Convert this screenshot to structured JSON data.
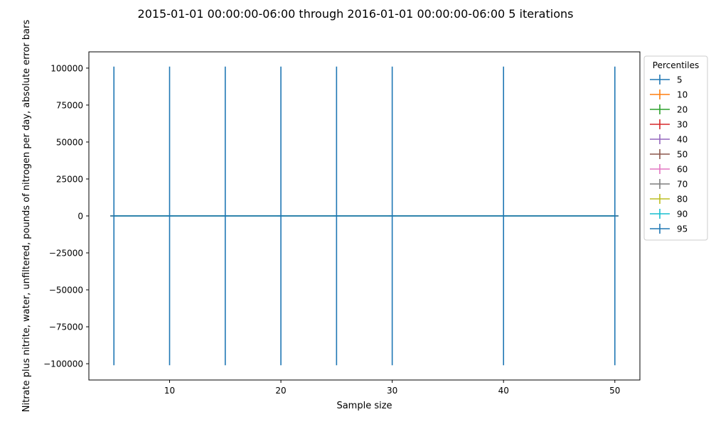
{
  "chart_data": {
    "type": "line",
    "title": "2015-01-01 00:00:00-06:00 through 2016-01-01 00:00:00-06:00 5 iterations",
    "xlabel": "Sample size",
    "ylabel": "Nitrate plus nitrite, water, unfiltered, pounds of nitrogen per day, absolute error bars",
    "xlim": [
      2.75,
      52.25
    ],
    "ylim": [
      -111000,
      111000
    ],
    "x_ticks": [
      10,
      20,
      30,
      40,
      50
    ],
    "x_tick_labels": [
      "10",
      "20",
      "30",
      "40",
      "50"
    ],
    "y_ticks": [
      100000,
      75000,
      50000,
      25000,
      0,
      -25000,
      -50000,
      -75000,
      -100000
    ],
    "y_tick_labels": [
      "100000",
      "75000",
      "50000",
      "25000",
      "0",
      "−25000",
      "−50000",
      "−75000",
      "−100000"
    ],
    "grid": false,
    "legend": {
      "title": "Percentiles",
      "placement": "outside-right"
    },
    "x": [
      5,
      10,
      15,
      20,
      25,
      30,
      40,
      50
    ],
    "series": [
      {
        "name": "5",
        "color": "#1f77b4",
        "values": [
          0,
          0,
          0,
          0,
          0,
          0,
          0,
          0
        ],
        "err": [
          0,
          0,
          0,
          0,
          0,
          0,
          0,
          0
        ]
      },
      {
        "name": "10",
        "color": "#ff7f0e",
        "values": [
          0,
          0,
          0,
          0,
          0,
          0,
          0,
          0
        ],
        "err": [
          0,
          0,
          0,
          0,
          0,
          0,
          0,
          0
        ]
      },
      {
        "name": "20",
        "color": "#2ca02c",
        "values": [
          0,
          0,
          0,
          0,
          0,
          0,
          0,
          0
        ],
        "err": [
          0,
          0,
          0,
          0,
          0,
          0,
          0,
          0
        ]
      },
      {
        "name": "30",
        "color": "#d62728",
        "values": [
          0,
          0,
          0,
          0,
          0,
          0,
          0,
          0
        ],
        "err": [
          0,
          0,
          0,
          0,
          0,
          0,
          0,
          0
        ]
      },
      {
        "name": "40",
        "color": "#9467bd",
        "values": [
          0,
          0,
          0,
          0,
          0,
          0,
          0,
          0
        ],
        "err": [
          0,
          0,
          0,
          0,
          0,
          0,
          0,
          0
        ]
      },
      {
        "name": "50",
        "color": "#8c564b",
        "values": [
          0,
          0,
          0,
          0,
          0,
          0,
          0,
          0
        ],
        "err": [
          0,
          0,
          0,
          0,
          0,
          0,
          0,
          0
        ]
      },
      {
        "name": "60",
        "color": "#e377c2",
        "values": [
          0,
          0,
          0,
          0,
          0,
          0,
          0,
          0
        ],
        "err": [
          0,
          0,
          0,
          0,
          0,
          0,
          0,
          0
        ]
      },
      {
        "name": "70",
        "color": "#7f7f7f",
        "values": [
          0,
          0,
          0,
          0,
          0,
          0,
          0,
          0
        ],
        "err": [
          0,
          0,
          0,
          0,
          0,
          0,
          0,
          0
        ]
      },
      {
        "name": "80",
        "color": "#bcbd22",
        "values": [
          0,
          0,
          0,
          0,
          0,
          0,
          0,
          0
        ],
        "err": [
          0,
          0,
          0,
          0,
          0,
          0,
          0,
          0
        ]
      },
      {
        "name": "90",
        "color": "#17becf",
        "values": [
          0,
          0,
          0,
          0,
          0,
          0,
          0,
          0
        ],
        "err": [
          0,
          0,
          0,
          0,
          0,
          0,
          0,
          0
        ]
      },
      {
        "name": "95",
        "color": "#1f77b4",
        "values": [
          0,
          0,
          0,
          0,
          0,
          0,
          0,
          0
        ],
        "err": [
          101000,
          101000,
          101000,
          101000,
          101000,
          101000,
          101000,
          101000
        ]
      }
    ]
  }
}
